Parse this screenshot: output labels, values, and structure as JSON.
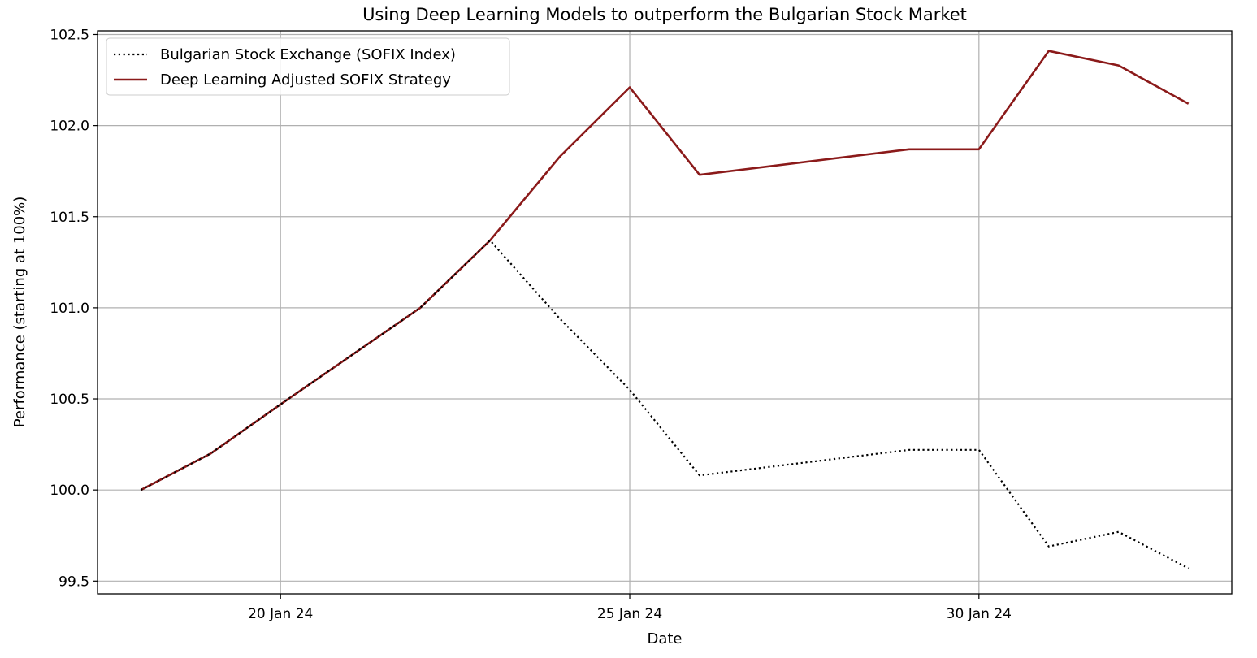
{
  "chart_data": {
    "type": "line",
    "title": "Using Deep Learning Models to outperform the Bulgarian Stock Market",
    "xlabel": "Date",
    "ylabel": "Performance (starting at 100%)",
    "x_range": [
      "2024-01-17T09:07:00",
      "2024-02-02T14:53:00"
    ],
    "ylim": [
      99.43,
      102.52
    ],
    "x_ticks": [
      {
        "date": "2024-01-20",
        "label": "20 Jan 24"
      },
      {
        "date": "2024-01-25",
        "label": "25 Jan 24"
      },
      {
        "date": "2024-01-30",
        "label": "30 Jan 24"
      }
    ],
    "y_ticks": [
      {
        "value": 99.5,
        "label": "99.5"
      },
      {
        "value": 100.0,
        "label": "100.0"
      },
      {
        "value": 100.5,
        "label": "100.5"
      },
      {
        "value": 101.0,
        "label": "101.0"
      },
      {
        "value": 101.5,
        "label": "101.5"
      },
      {
        "value": 102.0,
        "label": "102.0"
      },
      {
        "value": 102.5,
        "label": "102.5"
      }
    ],
    "grid": true,
    "legend_position": "top-left",
    "series": [
      {
        "name": "Bulgarian Stock Exchange (SOFIX Index)",
        "color": "#000000",
        "style": "dotted",
        "points": [
          {
            "x": "2024-01-18",
            "y": 100.0
          },
          {
            "x": "2024-01-19",
            "y": 100.2
          },
          {
            "x": "2024-01-20",
            "y": 100.47
          },
          {
            "x": "2024-01-22",
            "y": 101.0
          },
          {
            "x": "2024-01-23",
            "y": 101.37
          },
          {
            "x": "2024-01-24",
            "y": 100.94
          },
          {
            "x": "2024-01-25",
            "y": 100.55
          },
          {
            "x": "2024-01-26",
            "y": 100.08
          },
          {
            "x": "2024-01-29",
            "y": 100.22
          },
          {
            "x": "2024-01-30",
            "y": 100.22
          },
          {
            "x": "2024-01-31",
            "y": 99.69
          },
          {
            "x": "2024-02-01",
            "y": 99.77
          },
          {
            "x": "2024-02-02",
            "y": 99.57
          }
        ]
      },
      {
        "name": "Deep Learning Adjusted SOFIX Strategy",
        "color": "#8b1a1a",
        "style": "solid",
        "points": [
          {
            "x": "2024-01-18",
            "y": 100.0
          },
          {
            "x": "2024-01-19",
            "y": 100.2
          },
          {
            "x": "2024-01-20",
            "y": 100.47
          },
          {
            "x": "2024-01-22",
            "y": 101.0
          },
          {
            "x": "2024-01-23",
            "y": 101.37
          },
          {
            "x": "2024-01-24",
            "y": 101.83
          },
          {
            "x": "2024-01-25",
            "y": 102.21
          },
          {
            "x": "2024-01-26",
            "y": 101.73
          },
          {
            "x": "2024-01-29",
            "y": 101.87
          },
          {
            "x": "2024-01-30",
            "y": 101.87
          },
          {
            "x": "2024-01-31",
            "y": 102.41
          },
          {
            "x": "2024-02-01",
            "y": 102.33
          },
          {
            "x": "2024-02-02",
            "y": 102.12
          }
        ]
      }
    ]
  }
}
